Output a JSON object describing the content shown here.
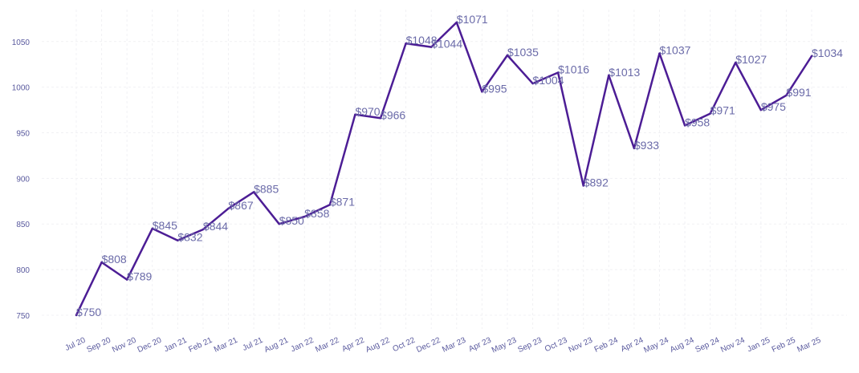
{
  "chart_data": {
    "type": "line",
    "title": "",
    "xlabel": "",
    "ylabel": "",
    "ylim": [
      735,
      1085
    ],
    "yticks": [
      750,
      800,
      850,
      900,
      950,
      1000,
      1050
    ],
    "grid": true,
    "line_color": "#4c1d95",
    "categories": [
      "Jul 20",
      "Sep 20",
      "Nov 20",
      "Dec 20",
      "Jan 21",
      "Feb 21",
      "Mar 21",
      "Jul 21",
      "Aug 21",
      "Jan 22",
      "Mar 22",
      "Apr 22",
      "Aug 22",
      "Oct 22",
      "Dec 22",
      "Mar 23",
      "Apr 23",
      "May 23",
      "Sep 23",
      "Oct 23",
      "Nov 23",
      "Feb 24",
      "Apr 24",
      "May 24",
      "Aug 24",
      "Sep 24",
      "Nov 24",
      "Jan 25",
      "Feb 25",
      "Mar 25"
    ],
    "values": [
      750,
      808,
      789,
      845,
      832,
      844,
      867,
      885,
      850,
      858,
      871,
      970,
      966,
      1048,
      1044,
      1071,
      995,
      1035,
      1004,
      1016,
      892,
      1013,
      933,
      1037,
      958,
      971,
      1027,
      975,
      991,
      1034
    ],
    "data_labels": [
      "$750",
      "$808",
      "$789",
      "$845",
      "$832",
      "$844",
      "$867",
      "$885",
      "$850",
      "$858",
      "$871",
      "$970",
      "$966",
      "$1048",
      "$1044",
      "$1071",
      "$995",
      "$1035",
      "$1004",
      "$1016",
      "$892",
      "$1013",
      "$933",
      "$1037",
      "$958",
      "$971",
      "$1027",
      "$975",
      "$991",
      "$1034"
    ]
  }
}
